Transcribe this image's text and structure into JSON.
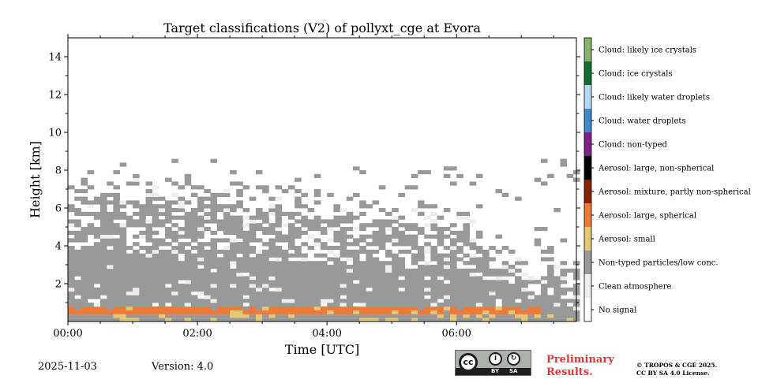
{
  "chart_data": {
    "type": "heatmap",
    "title": "Target classifications (V2) of pollyxt_cge at Evora",
    "xlabel": "Time [UTC]",
    "ylabel": "Height [km]",
    "xlim": [
      0,
      7.85
    ],
    "ylim": [
      0,
      15
    ],
    "x_ticks": [
      {
        "value": 0,
        "label": "00:00"
      },
      {
        "value": 2,
        "label": "02:00"
      },
      {
        "value": 4,
        "label": "04:00"
      },
      {
        "value": 6,
        "label": "06:00"
      }
    ],
    "y_ticks": [
      {
        "value": 2,
        "label": "2"
      },
      {
        "value": 4,
        "label": "4"
      },
      {
        "value": 6,
        "label": "6"
      },
      {
        "value": 8,
        "label": "8"
      },
      {
        "value": 10,
        "label": "10"
      },
      {
        "value": 12,
        "label": "12"
      },
      {
        "value": 14,
        "label": "14"
      }
    ],
    "classes": [
      {
        "label": "No signal",
        "color": "#ffffff"
      },
      {
        "label": "Clean atmosphere",
        "color": "#eeeeee"
      },
      {
        "label": "Non-typed particles/low conc.",
        "color": "#999999"
      },
      {
        "label": "Aerosol: small",
        "color": "#e2c877"
      },
      {
        "label": "Aerosol: large, spherical",
        "color": "#ee7a3a"
      },
      {
        "label": "Aerosol: mixture, partly non-spherical",
        "color": "#862400"
      },
      {
        "label": "Aerosol: large, non-spherical",
        "color": "#000000"
      },
      {
        "label": "Cloud: non-typed",
        "color": "#7f1f8a"
      },
      {
        "label": "Cloud: water droplets",
        "color": "#3d8bcb"
      },
      {
        "label": "Cloud: likely water droplets",
        "color": "#b4d9f5"
      },
      {
        "label": "Cloud: ice crystals",
        "color": "#116d34"
      },
      {
        "label": "Cloud: likely ice crystals",
        "color": "#86b46a"
      }
    ],
    "aerosol_layer": {
      "class": "Aerosol: large, spherical",
      "height_km": [
        0.35,
        0.8
      ],
      "time_utc": [
        0,
        7.3
      ]
    },
    "non_typed_top_km": {
      "00:00": 7.0,
      "03:00": 6.0,
      "06:00": 5.0,
      "06:45": 3.0,
      "07:50": 2.0
    }
  },
  "footer": {
    "date": "2025-11-03",
    "version": "Version: 4.0",
    "preliminary_line1": "Preliminary",
    "preliminary_line2": "Results.",
    "copyright_line1": "© TROPOS & CGE 2025.",
    "copyright_line2": "CC BY SA 4.0 License."
  },
  "license_badge": {
    "cc": "cc",
    "by": "BY",
    "sa": "SA"
  }
}
